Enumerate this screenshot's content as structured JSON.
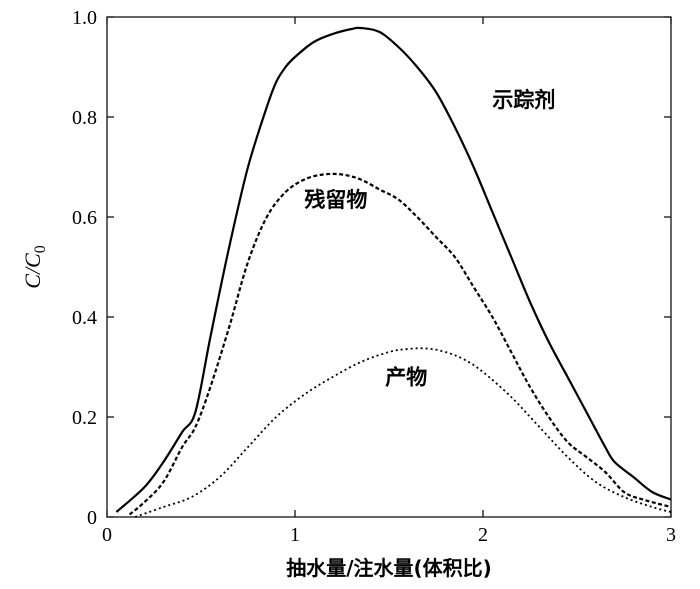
{
  "chart_data": {
    "type": "line",
    "title": "",
    "xlabel": "抽水量/注水量(体积比)",
    "ylabel": {
      "main": "C/C",
      "sub": "0"
    },
    "xlim": [
      0,
      3
    ],
    "ylim": [
      0,
      1.0
    ],
    "x_ticks": [
      "0",
      "1",
      "2",
      "3"
    ],
    "y_ticks": [
      "0",
      "0.2",
      "0.4",
      "0.6",
      "0.8",
      "1.0"
    ],
    "grid": false,
    "legend": "none",
    "series": [
      {
        "name": "示踪剂",
        "style": "solid",
        "x": [
          0.05,
          0.2,
          0.3,
          0.4,
          0.47,
          0.55,
          0.65,
          0.75,
          0.85,
          0.9,
          0.95,
          1.0,
          1.1,
          1.2,
          1.3,
          1.35,
          1.45,
          1.55,
          1.65,
          1.75,
          1.85,
          1.95,
          2.05,
          2.15,
          2.25,
          2.35,
          2.45,
          2.55,
          2.65,
          2.7,
          2.8,
          2.9,
          3.0
        ],
        "y": [
          0.01,
          0.06,
          0.11,
          0.17,
          0.21,
          0.36,
          0.54,
          0.7,
          0.82,
          0.87,
          0.9,
          0.92,
          0.95,
          0.966,
          0.976,
          0.978,
          0.97,
          0.94,
          0.9,
          0.85,
          0.78,
          0.7,
          0.61,
          0.52,
          0.43,
          0.35,
          0.28,
          0.21,
          0.14,
          0.11,
          0.08,
          0.05,
          0.035
        ]
      },
      {
        "name": "残留物",
        "style": "dashed",
        "x": [
          0.12,
          0.2,
          0.3,
          0.4,
          0.47,
          0.55,
          0.65,
          0.75,
          0.85,
          0.95,
          1.05,
          1.15,
          1.25,
          1.35,
          1.45,
          1.55,
          1.65,
          1.75,
          1.85,
          1.95,
          2.05,
          2.15,
          2.25,
          2.35,
          2.45,
          2.55,
          2.65,
          2.75,
          2.85,
          3.0
        ],
        "y": [
          0.005,
          0.03,
          0.07,
          0.14,
          0.18,
          0.26,
          0.38,
          0.51,
          0.6,
          0.65,
          0.675,
          0.685,
          0.685,
          0.675,
          0.655,
          0.635,
          0.6,
          0.56,
          0.52,
          0.46,
          0.4,
          0.33,
          0.26,
          0.2,
          0.15,
          0.12,
          0.09,
          0.05,
          0.035,
          0.02
        ]
      },
      {
        "name": "产物",
        "style": "dotted",
        "x": [
          0.15,
          0.3,
          0.45,
          0.6,
          0.75,
          0.9,
          1.05,
          1.2,
          1.35,
          1.5,
          1.6,
          1.7,
          1.8,
          1.9,
          2.0,
          2.15,
          2.3,
          2.45,
          2.6,
          2.75,
          2.9,
          3.0
        ],
        "y": [
          0.0,
          0.02,
          0.04,
          0.08,
          0.14,
          0.2,
          0.245,
          0.28,
          0.31,
          0.33,
          0.336,
          0.337,
          0.33,
          0.315,
          0.29,
          0.24,
          0.18,
          0.12,
          0.07,
          0.04,
          0.02,
          0.01
        ]
      }
    ],
    "annotations": [
      {
        "text": "示踪剂",
        "x": 2.05,
        "y": 0.82
      },
      {
        "text": "残留物",
        "x": 1.05,
        "y": 0.62
      },
      {
        "text": "产物",
        "x": 1.48,
        "y": 0.265
      }
    ]
  }
}
